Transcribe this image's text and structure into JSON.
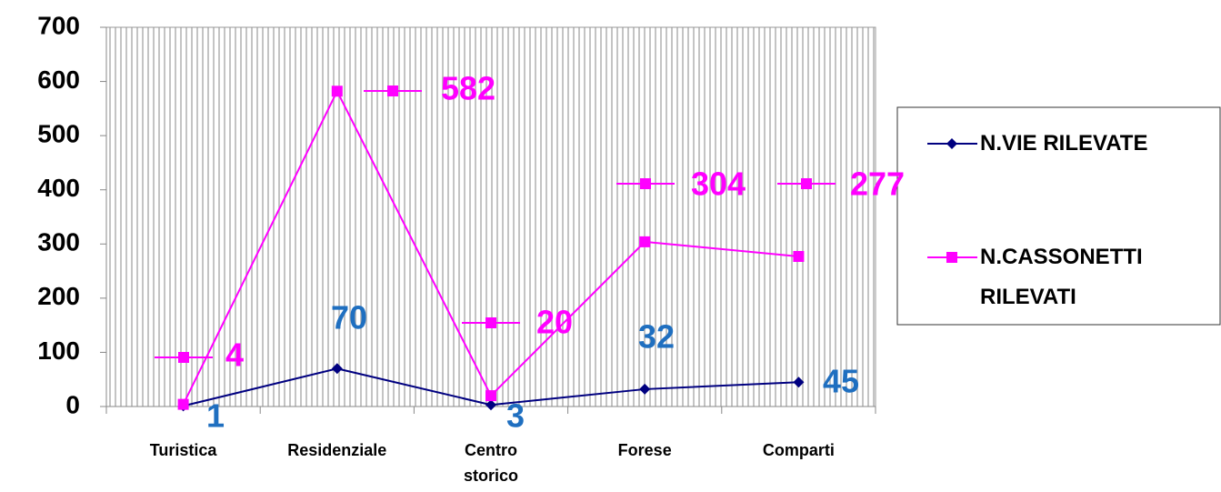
{
  "chart_data": {
    "type": "line",
    "categories": [
      "Turistica",
      "Residenziale",
      "Centro storico",
      "Forese",
      "Comparti"
    ],
    "series": [
      {
        "name": "N.VIE RILEVATE",
        "color": "#000080",
        "label_color": "#1f6fc0",
        "marker": "diamond",
        "values": [
          1,
          70,
          3,
          32,
          45
        ]
      },
      {
        "name": "N.CASSONETTI RILEVATI",
        "color": "#ff00ff",
        "label_color": "#ff00ff",
        "marker": "square",
        "values": [
          4,
          582,
          20,
          304,
          277
        ]
      }
    ],
    "ylim": [
      0,
      700
    ],
    "yticks": [
      0,
      100,
      200,
      300,
      400,
      500,
      600,
      700
    ],
    "grid": false,
    "legend": "right"
  }
}
